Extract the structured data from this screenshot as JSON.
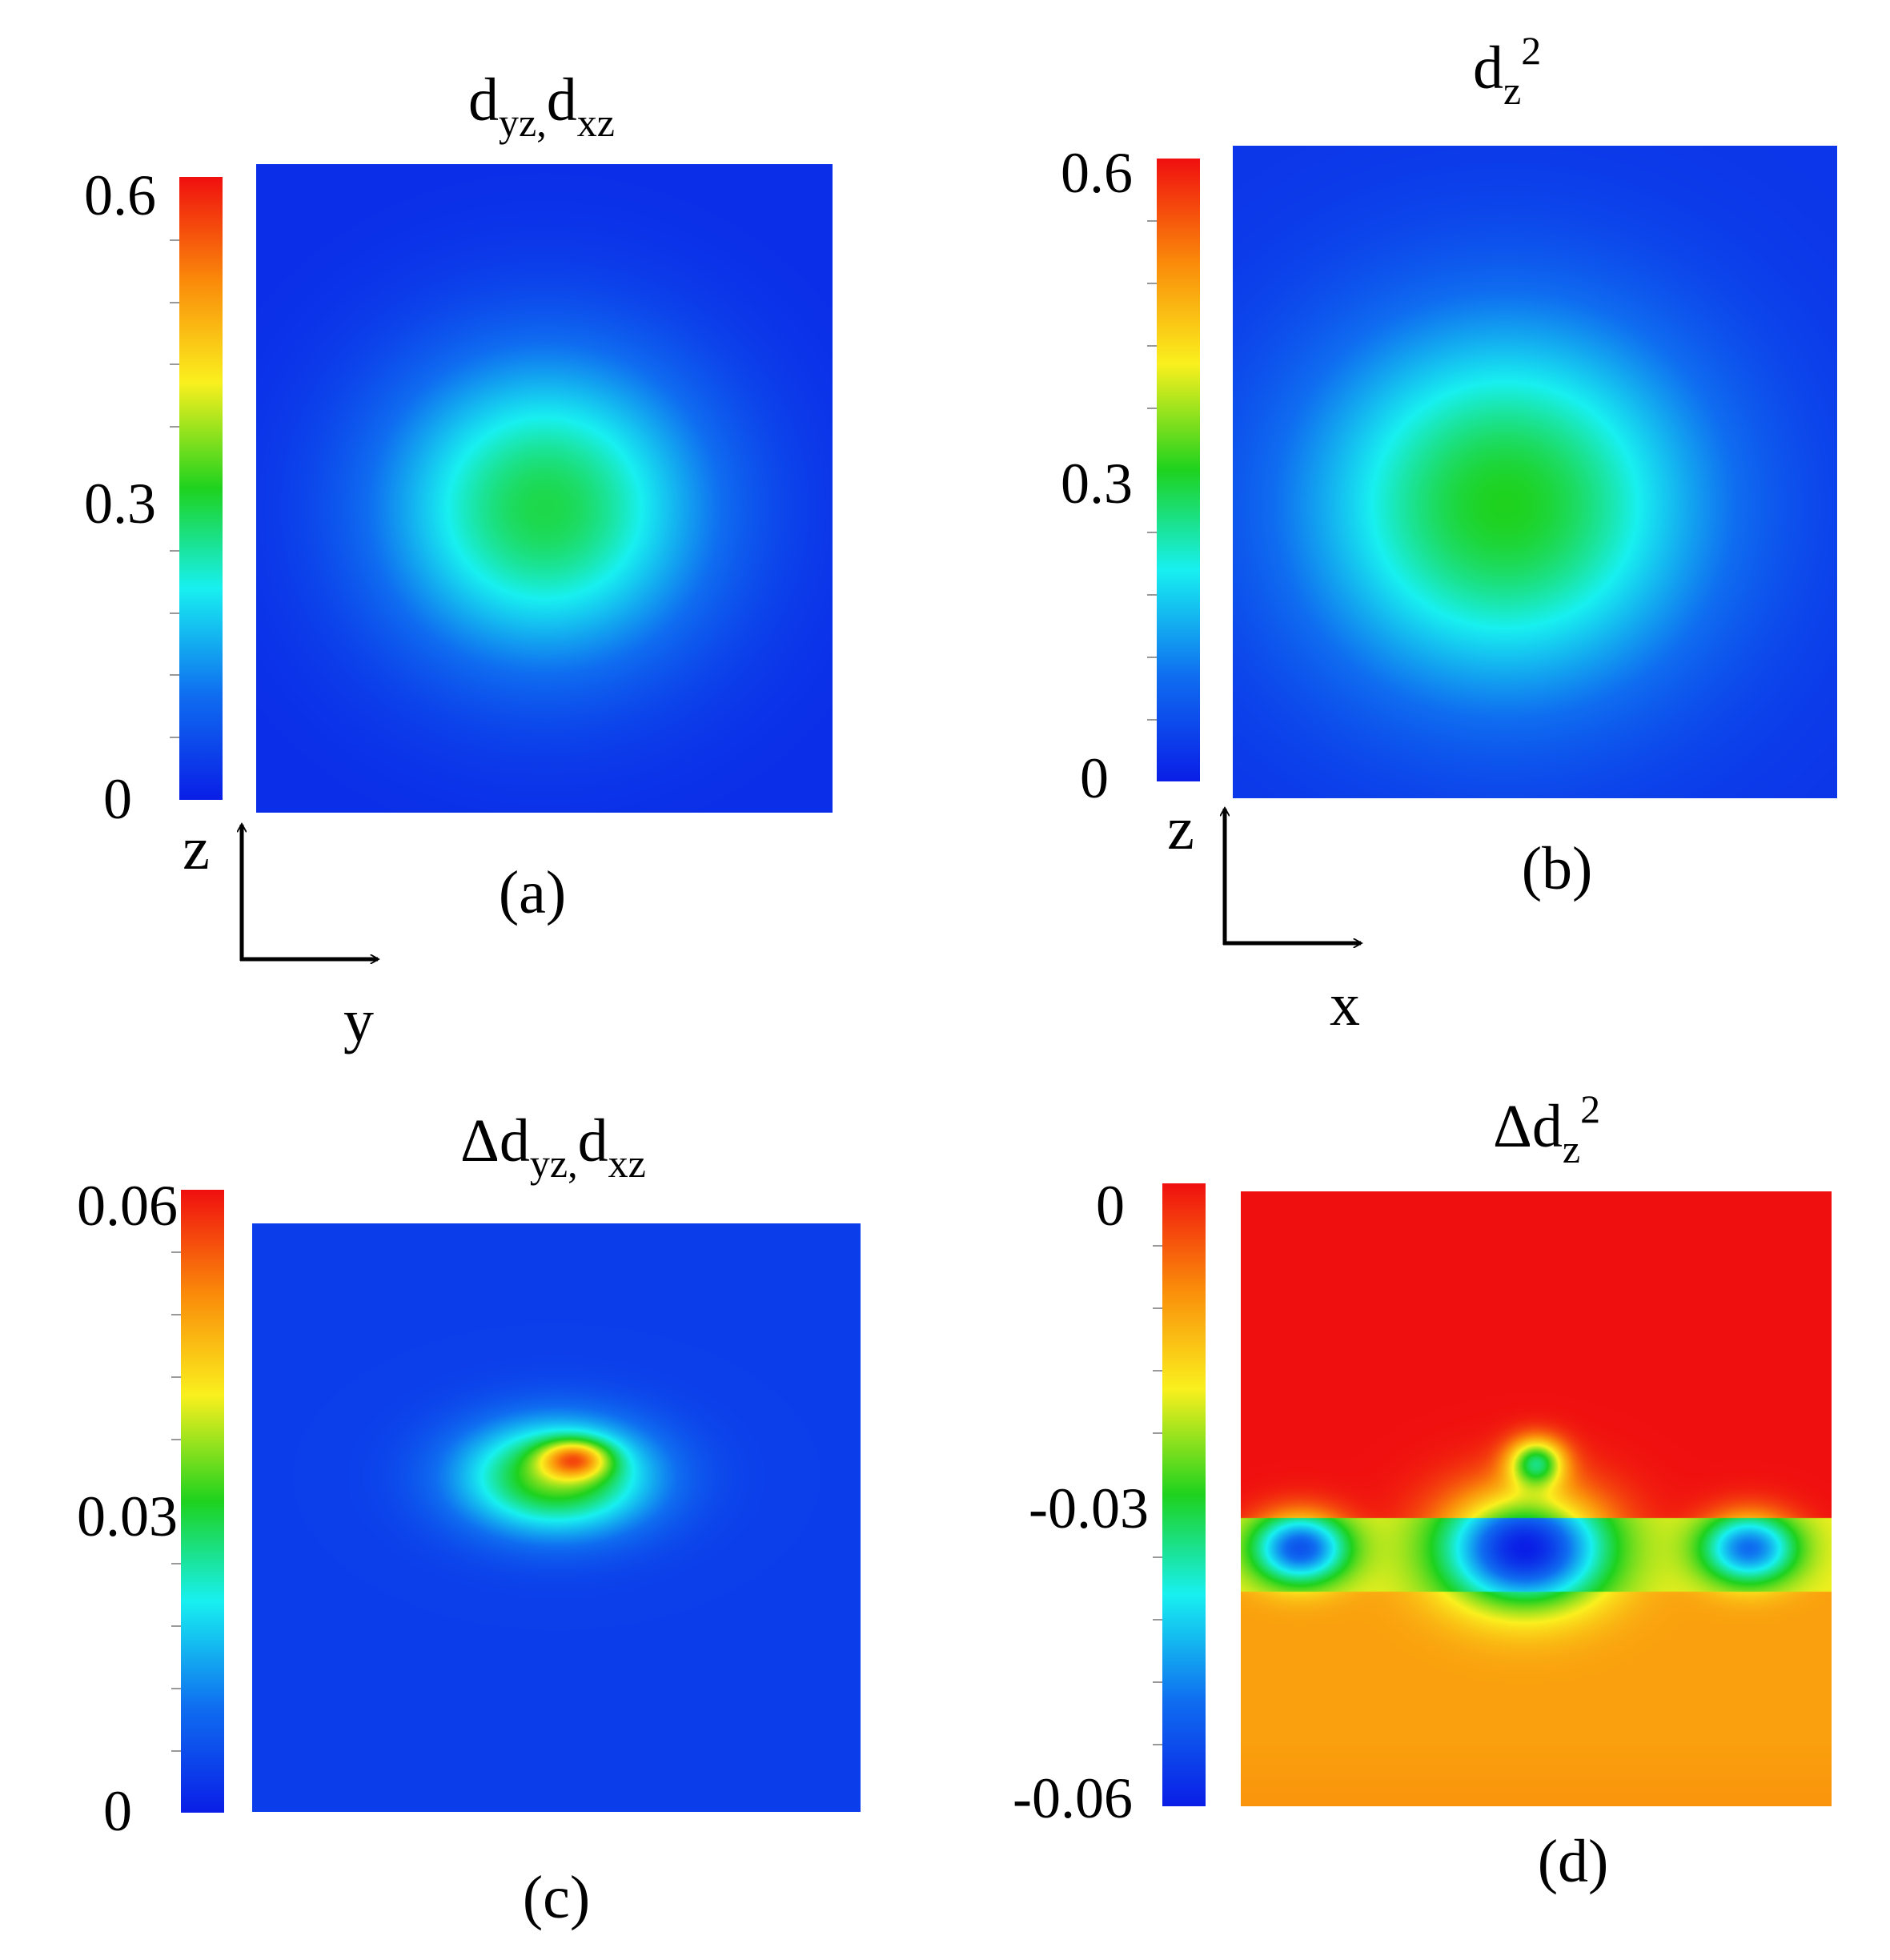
{
  "colors": {
    "background": "#ffffff",
    "colormap": [
      "#0a1ee6",
      "#0f6ef0",
      "#18f0f0",
      "#1ed21e",
      "#faf01e",
      "#fa8c0a",
      "#f00f0f"
    ]
  },
  "chart_data": [
    {
      "type": "heatmap",
      "panel_label": "(a)",
      "title_main": "d",
      "title_sub1": "yz,",
      "title_main2": "d",
      "title_sub2": "xz",
      "colorbar": {
        "ticks": [
          "0.6",
          "0.3",
          "0"
        ],
        "range": [
          0,
          0.6
        ]
      },
      "axes": {
        "vertical": "z",
        "horizontal": "y"
      },
      "field": {
        "background": 0.02,
        "blobs": [
          {
            "cx": 0.5,
            "cy": 0.53,
            "rx": 0.36,
            "ry": 0.3,
            "peak": 0.26
          }
        ]
      }
    },
    {
      "type": "heatmap",
      "panel_label": "(b)",
      "title_main": "d",
      "title_sub1": "z",
      "title_sup": "2",
      "colorbar": {
        "ticks": [
          "0.6",
          "0.3",
          "0"
        ],
        "range": [
          0,
          0.6
        ]
      },
      "axes": {
        "vertical": "z",
        "horizontal": "x"
      },
      "field": {
        "background": 0.03,
        "blobs": [
          {
            "cx": 0.45,
            "cy": 0.55,
            "rx": 0.42,
            "ry": 0.36,
            "peak": 0.27
          }
        ]
      }
    },
    {
      "type": "heatmap",
      "panel_label": "(c)",
      "title_main": "Δd",
      "title_sub1": "yz,",
      "title_main2": "d",
      "title_sub2": "xz",
      "colorbar": {
        "ticks": [
          "0.06",
          "0.03",
          "0"
        ],
        "range": [
          0,
          0.06
        ]
      },
      "field": {
        "background": 0.004,
        "blobs": [
          {
            "cx": 0.5,
            "cy": 0.43,
            "rx": 0.2,
            "ry": 0.12,
            "peak": 0.03
          },
          {
            "cx": 0.53,
            "cy": 0.4,
            "rx": 0.07,
            "ry": 0.04,
            "peak": 0.025
          }
        ]
      }
    },
    {
      "type": "heatmap",
      "panel_label": "(d)",
      "title_main": "Δd",
      "title_sub1": "z",
      "title_sup": "2",
      "colorbar": {
        "ticks": [
          "0",
          "-0.03",
          "-0.06"
        ],
        "range": [
          -0.06,
          0
        ]
      },
      "field": {
        "background": 0,
        "band_y": 0.58,
        "blobs": [
          {
            "cx": 0.48,
            "cy": 0.58,
            "rx": 0.17,
            "ry": 0.12,
            "peak": -0.04
          },
          {
            "cx": 0.1,
            "cy": 0.58,
            "rx": 0.1,
            "ry": 0.07,
            "peak": -0.033
          },
          {
            "cx": 0.86,
            "cy": 0.58,
            "rx": 0.1,
            "ry": 0.07,
            "peak": -0.03
          },
          {
            "cx": 0.5,
            "cy": 0.44,
            "rx": 0.06,
            "ry": 0.05,
            "peak": -0.03
          }
        ]
      }
    }
  ]
}
